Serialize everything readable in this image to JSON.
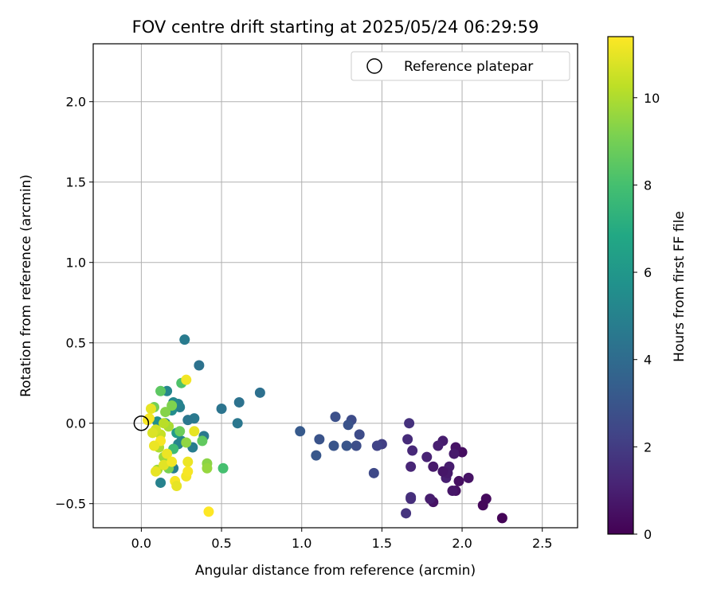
{
  "chart_data": {
    "type": "scatter",
    "title": "FOV centre drift starting at 2025/05/24 06:29:59",
    "xlabel": "Angular distance from reference (arcmin)",
    "ylabel": "Rotation from reference (arcmin)",
    "xlim": [
      -0.3,
      2.72
    ],
    "ylim": [
      -0.65,
      2.36
    ],
    "xticks": [
      0.0,
      0.5,
      1.0,
      1.5,
      2.0,
      2.5
    ],
    "xtick_labels": [
      "0.0",
      "0.5",
      "1.0",
      "1.5",
      "2.0",
      "2.5"
    ],
    "yticks": [
      -0.5,
      0.0,
      0.5,
      1.0,
      1.5,
      2.0
    ],
    "ytick_labels": [
      "−0.5",
      "0.0",
      "0.5",
      "1.0",
      "1.5",
      "2.0"
    ],
    "grid": true,
    "legend": {
      "position": "top-right",
      "entries": [
        "Reference platepar"
      ]
    },
    "reference_point": {
      "x": 0.0,
      "y": 0.0,
      "label": "Reference platepar"
    },
    "colorbar": {
      "label": "Hours from first FF file",
      "colormap": "viridis",
      "range": [
        0,
        11.4
      ],
      "ticks": [
        0,
        2,
        4,
        6,
        8,
        10
      ],
      "tick_labels": [
        "0",
        "2",
        "4",
        "6",
        "8",
        "10"
      ]
    },
    "points": [
      {
        "x": 2.25,
        "y": -0.59,
        "c": 0.1
      },
      {
        "x": 2.15,
        "y": -0.47,
        "c": 0.3
      },
      {
        "x": 2.13,
        "y": -0.51,
        "c": 0.2
      },
      {
        "x": 2.04,
        "y": -0.34,
        "c": 0.6
      },
      {
        "x": 2.0,
        "y": -0.18,
        "c": 0.4
      },
      {
        "x": 1.98,
        "y": -0.36,
        "c": 0.5
      },
      {
        "x": 1.96,
        "y": -0.15,
        "c": 0.6
      },
      {
        "x": 1.95,
        "y": -0.19,
        "c": 0.8
      },
      {
        "x": 1.96,
        "y": -0.42,
        "c": 0.5
      },
      {
        "x": 1.94,
        "y": -0.42,
        "c": 0.7
      },
      {
        "x": 1.92,
        "y": -0.27,
        "c": 0.9
      },
      {
        "x": 1.9,
        "y": -0.34,
        "c": 1.0
      },
      {
        "x": 1.91,
        "y": -0.31,
        "c": 0.8
      },
      {
        "x": 1.88,
        "y": -0.3,
        "c": 0.7
      },
      {
        "x": 1.88,
        "y": -0.11,
        "c": 0.9
      },
      {
        "x": 1.85,
        "y": -0.14,
        "c": 1.0
      },
      {
        "x": 1.82,
        "y": -0.27,
        "c": 0.8
      },
      {
        "x": 1.82,
        "y": -0.49,
        "c": 0.6
      },
      {
        "x": 1.8,
        "y": -0.47,
        "c": 0.9
      },
      {
        "x": 1.78,
        "y": -0.21,
        "c": 1.1
      },
      {
        "x": 1.69,
        "y": -0.17,
        "c": 1.3
      },
      {
        "x": 1.68,
        "y": -0.27,
        "c": 1.2
      },
      {
        "x": 1.68,
        "y": -0.46,
        "c": 1.6
      },
      {
        "x": 1.68,
        "y": -0.47,
        "c": 1.5
      },
      {
        "x": 1.67,
        "y": 0.0,
        "c": 1.6
      },
      {
        "x": 1.66,
        "y": -0.1,
        "c": 1.4
      },
      {
        "x": 1.65,
        "y": -0.56,
        "c": 1.7
      },
      {
        "x": 1.5,
        "y": -0.13,
        "c": 2.1
      },
      {
        "x": 1.47,
        "y": -0.14,
        "c": 2.3
      },
      {
        "x": 1.45,
        "y": -0.31,
        "c": 2.5
      },
      {
        "x": 1.36,
        "y": -0.07,
        "c": 2.6
      },
      {
        "x": 1.34,
        "y": -0.14,
        "c": 2.7
      },
      {
        "x": 1.31,
        "y": 0.02,
        "c": 2.6
      },
      {
        "x": 1.29,
        "y": -0.01,
        "c": 2.9
      },
      {
        "x": 1.28,
        "y": -0.14,
        "c": 3.0
      },
      {
        "x": 1.21,
        "y": 0.04,
        "c": 2.8
      },
      {
        "x": 1.2,
        "y": -0.14,
        "c": 3.0
      },
      {
        "x": 1.11,
        "y": -0.1,
        "c": 2.9
      },
      {
        "x": 1.09,
        "y": -0.2,
        "c": 3.1
      },
      {
        "x": 0.99,
        "y": -0.05,
        "c": 3.2
      },
      {
        "x": 0.74,
        "y": 0.19,
        "c": 4.2
      },
      {
        "x": 0.61,
        "y": 0.13,
        "c": 4.3
      },
      {
        "x": 0.6,
        "y": 0.0,
        "c": 4.5
      },
      {
        "x": 0.5,
        "y": 0.09,
        "c": 4.4
      },
      {
        "x": 0.39,
        "y": -0.08,
        "c": 4.6
      },
      {
        "x": 0.36,
        "y": 0.36,
        "c": 4.3
      },
      {
        "x": 0.33,
        "y": 0.03,
        "c": 4.6
      },
      {
        "x": 0.32,
        "y": -0.15,
        "c": 4.8
      },
      {
        "x": 0.29,
        "y": 0.02,
        "c": 4.5
      },
      {
        "x": 0.27,
        "y": 0.52,
        "c": 4.7
      },
      {
        "x": 0.25,
        "y": -0.11,
        "c": 5.0
      },
      {
        "x": 0.24,
        "y": 0.1,
        "c": 4.9
      },
      {
        "x": 0.23,
        "y": 0.12,
        "c": 5.0
      },
      {
        "x": 0.23,
        "y": -0.13,
        "c": 5.1
      },
      {
        "x": 0.2,
        "y": 0.13,
        "c": 5.3
      },
      {
        "x": 0.2,
        "y": -0.28,
        "c": 4.8
      },
      {
        "x": 0.19,
        "y": 0.08,
        "c": 5.5
      },
      {
        "x": 0.16,
        "y": 0.2,
        "c": 5.2
      },
      {
        "x": 0.15,
        "y": 0.0,
        "c": 5.4
      },
      {
        "x": 0.12,
        "y": -0.37,
        "c": 5.0
      },
      {
        "x": 0.1,
        "y": 0.01,
        "c": 5.6
      },
      {
        "x": 0.22,
        "y": -0.06,
        "c": 6.2
      },
      {
        "x": 0.2,
        "y": -0.16,
        "c": 7.8
      },
      {
        "x": 0.51,
        "y": -0.28,
        "c": 8.0
      },
      {
        "x": 0.25,
        "y": 0.25,
        "c": 8.2
      },
      {
        "x": 0.38,
        "y": -0.11,
        "c": 8.6
      },
      {
        "x": 0.12,
        "y": 0.2,
        "c": 8.5
      },
      {
        "x": 0.24,
        "y": -0.05,
        "c": 8.8
      },
      {
        "x": 0.08,
        "y": 0.1,
        "c": 9.0
      },
      {
        "x": 0.17,
        "y": -0.28,
        "c": 9.1
      },
      {
        "x": 0.15,
        "y": 0.07,
        "c": 9.3
      },
      {
        "x": 0.19,
        "y": 0.11,
        "c": 9.2
      },
      {
        "x": 0.28,
        "y": -0.12,
        "c": 9.5
      },
      {
        "x": 0.41,
        "y": -0.25,
        "c": 9.4
      },
      {
        "x": 0.41,
        "y": -0.28,
        "c": 9.6
      },
      {
        "x": 0.1,
        "y": -0.29,
        "c": 9.8
      },
      {
        "x": 0.14,
        "y": -0.21,
        "c": 9.7
      },
      {
        "x": 0.17,
        "y": -0.02,
        "c": 9.9
      },
      {
        "x": 0.11,
        "y": -0.15,
        "c": 10.0
      },
      {
        "x": 0.14,
        "y": 0.0,
        "c": 10.2
      },
      {
        "x": 0.12,
        "y": -0.07,
        "c": 10.4
      },
      {
        "x": 0.09,
        "y": -0.04,
        "c": 10.6
      },
      {
        "x": 0.07,
        "y": -0.06,
        "c": 10.8
      },
      {
        "x": 0.06,
        "y": 0.09,
        "c": 11.0
      },
      {
        "x": 0.05,
        "y": 0.03,
        "c": 11.2
      },
      {
        "x": 0.04,
        "y": 0.02,
        "c": 11.3
      },
      {
        "x": 0.09,
        "y": -0.3,
        "c": 11.0
      },
      {
        "x": 0.14,
        "y": -0.26,
        "c": 10.9
      },
      {
        "x": 0.16,
        "y": -0.19,
        "c": 11.1
      },
      {
        "x": 0.19,
        "y": -0.24,
        "c": 11.2
      },
      {
        "x": 0.21,
        "y": -0.36,
        "c": 11.3
      },
      {
        "x": 0.22,
        "y": -0.39,
        "c": 11.0
      },
      {
        "x": 0.28,
        "y": -0.33,
        "c": 11.2
      },
      {
        "x": 0.29,
        "y": -0.24,
        "c": 11.1
      },
      {
        "x": 0.29,
        "y": -0.3,
        "c": 11.3
      },
      {
        "x": 0.33,
        "y": -0.05,
        "c": 11.0
      },
      {
        "x": 0.28,
        "y": 0.27,
        "c": 11.2
      },
      {
        "x": 0.42,
        "y": -0.55,
        "c": 11.4
      },
      {
        "x": 0.12,
        "y": -0.11,
        "c": 11.3
      },
      {
        "x": 0.08,
        "y": -0.14,
        "c": 11.1
      }
    ]
  }
}
